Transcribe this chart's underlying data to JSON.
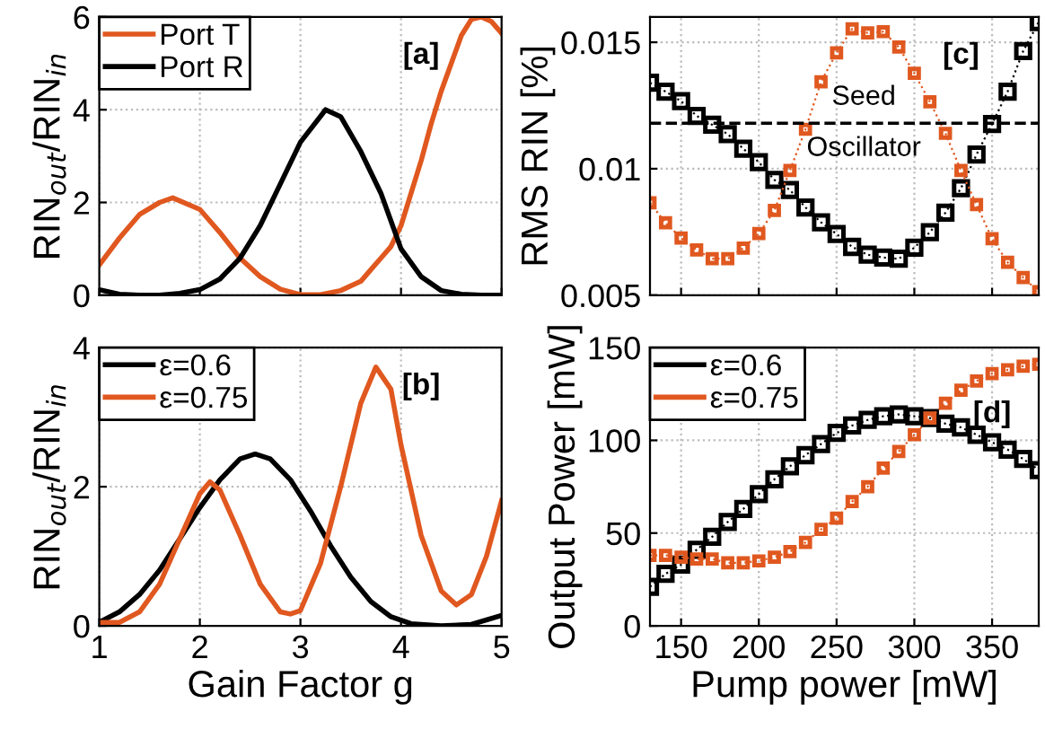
{
  "chart_data": [
    {
      "type": "line",
      "ylabel": "RIN$_{out}$/RIN$_{in}$",
      "xlim": [
        1,
        5
      ],
      "ylim": [
        0,
        6
      ],
      "xticks": [
        1,
        2,
        3,
        4,
        5
      ],
      "yticks": [
        0,
        2,
        4,
        6
      ],
      "tick_labels": "y",
      "grid": true,
      "legend": "top left",
      "marker": "none",
      "annotations": [
        "[a]"
      ],
      "series": [
        {
          "name": "Port T",
          "color": "#e0581f",
          "x": [
            1.0,
            1.2,
            1.4,
            1.6,
            1.73,
            2.0,
            2.2,
            2.4,
            2.6,
            2.8,
            3.0,
            3.2,
            3.4,
            3.6,
            3.7,
            3.8,
            3.9,
            4.0,
            4.1,
            4.2,
            4.3,
            4.4,
            4.5,
            4.6,
            4.7,
            4.8,
            4.9,
            5.0
          ],
          "values": [
            0.65,
            1.23,
            1.74,
            2.0,
            2.1,
            1.85,
            1.35,
            0.8,
            0.4,
            0.13,
            0.01,
            0.01,
            0.1,
            0.3,
            0.55,
            0.8,
            1.05,
            1.5,
            2.2,
            2.9,
            3.7,
            4.4,
            5.0,
            5.6,
            5.95,
            6.0,
            5.9,
            5.65
          ]
        },
        {
          "name": "Port R",
          "color": "#000000",
          "x": [
            1.0,
            1.2,
            1.4,
            1.6,
            1.8,
            2.0,
            2.2,
            2.4,
            2.6,
            2.8,
            3.0,
            3.25,
            3.4,
            3.6,
            3.8,
            3.95,
            4.0,
            4.2,
            4.4,
            4.6,
            4.8,
            5.0
          ],
          "values": [
            0.12,
            0.02,
            0,
            0,
            0.04,
            0.12,
            0.35,
            0.8,
            1.5,
            2.4,
            3.3,
            4.0,
            3.85,
            3.1,
            2.2,
            1.3,
            1.0,
            0.4,
            0.1,
            0.02,
            0,
            0
          ]
        }
      ]
    },
    {
      "type": "line",
      "xlabel": "Gain Factor g",
      "ylabel": "RIN$_{out}$/RIN$_{in}$",
      "xlim": [
        1,
        5
      ],
      "ylim": [
        0,
        4
      ],
      "xticks": [
        1,
        2,
        3,
        4,
        5
      ],
      "yticks": [
        0,
        2,
        4
      ],
      "grid": true,
      "legend": "top left",
      "marker": "none",
      "annotations": [
        "[b]"
      ],
      "series": [
        {
          "name": "ε=0.6",
          "color": "#000000",
          "x": [
            1.0,
            1.2,
            1.4,
            1.6,
            1.8,
            2.0,
            2.2,
            2.4,
            2.55,
            2.7,
            2.9,
            3.1,
            3.3,
            3.5,
            3.7,
            3.9,
            4.1,
            4.4,
            4.7,
            5.0
          ],
          "values": [
            0.05,
            0.2,
            0.45,
            0.8,
            1.25,
            1.7,
            2.1,
            2.4,
            2.47,
            2.4,
            2.1,
            1.65,
            1.15,
            0.7,
            0.35,
            0.13,
            0.03,
            0,
            0.02,
            0.15
          ]
        },
        {
          "name": "ε=0.75",
          "color": "#e0581f",
          "x": [
            1.0,
            1.2,
            1.4,
            1.6,
            1.8,
            2.0,
            2.1,
            2.2,
            2.4,
            2.6,
            2.8,
            2.9,
            3.0,
            3.2,
            3.4,
            3.6,
            3.75,
            3.9,
            4.0,
            4.2,
            4.4,
            4.55,
            4.7,
            4.85,
            5.0
          ],
          "values": [
            0.05,
            0.05,
            0.2,
            0.6,
            1.25,
            1.9,
            2.07,
            1.95,
            1.3,
            0.6,
            0.2,
            0.17,
            0.22,
            0.9,
            2.0,
            3.2,
            3.72,
            3.4,
            2.6,
            1.3,
            0.5,
            0.3,
            0.45,
            1.0,
            1.8
          ]
        }
      ]
    },
    {
      "type": "line",
      "ylabel": "RMS RIN [%]",
      "xlim": [
        130,
        380
      ],
      "ylim": [
        0.005,
        0.016
      ],
      "xticks": [
        150,
        200,
        250,
        300,
        350
      ],
      "yticks": [
        0.005,
        0.01,
        0.015
      ],
      "tick_labels": "y",
      "grid": true,
      "marker": "square",
      "line_style": "dotted",
      "annotations": [
        "[c]"
      ],
      "ref_lines": [
        {
          "axis": "y",
          "value": 0.0118,
          "label": "Seed Oscillator",
          "color": "#000000",
          "line_style": "dashed"
        }
      ],
      "x": [
        130,
        140,
        150,
        160,
        170,
        180,
        190,
        200,
        210,
        220,
        230,
        240,
        250,
        260,
        270,
        280,
        290,
        300,
        310,
        320,
        330,
        340,
        350,
        360,
        370,
        380
      ],
      "series": [
        {
          "color": "#000000",
          "values": [
            0.0134,
            0.01305,
            0.01267,
            0.01209,
            0.01174,
            0.01137,
            0.01079,
            0.01026,
            0.00956,
            0.00916,
            0.00847,
            0.00788,
            0.00742,
            0.00691,
            0.0066,
            0.00649,
            0.00644,
            0.00688,
            0.00749,
            0.00826,
            0.00923,
            0.01056,
            0.01177,
            0.01305,
            0.01465,
            0.0158
          ]
        },
        {
          "color": "#e0581f",
          "values": [
            0.00865,
            0.00786,
            0.00726,
            0.00679,
            0.00644,
            0.00644,
            0.00686,
            0.00744,
            0.00835,
            0.00993,
            0.01156,
            0.01344,
            0.01458,
            0.01553,
            0.01537,
            0.01542,
            0.01481,
            0.01377,
            0.01265,
            0.0114,
            0.00993,
            0.00858,
            0.00723,
            0.0063,
            0.0057,
            0.00514
          ]
        }
      ]
    },
    {
      "type": "line",
      "xlabel": "Pump power [mW]",
      "ylabel": "Output Power [mW]",
      "xlim": [
        130,
        380
      ],
      "ylim": [
        0,
        150
      ],
      "xticks": [
        150,
        200,
        250,
        300,
        350
      ],
      "yticks": [
        0,
        50,
        100,
        150
      ],
      "grid": true,
      "legend": "top left",
      "marker": "square",
      "line_style": "dotted",
      "annotations": [
        "[d]"
      ],
      "x": [
        130,
        140,
        150,
        160,
        170,
        180,
        190,
        200,
        210,
        220,
        230,
        240,
        250,
        260,
        270,
        280,
        290,
        300,
        310,
        320,
        330,
        340,
        350,
        360,
        370,
        380
      ],
      "series": [
        {
          "name": "ε=0.6",
          "color": "#000000",
          "values": [
            21,
            28,
            33,
            41,
            48,
            56,
            63,
            71,
            79,
            86,
            92,
            98,
            104,
            108,
            111,
            113,
            114,
            113,
            112,
            109,
            107,
            103,
            99,
            95,
            90,
            84
          ]
        },
        {
          "name": "ε=0.75",
          "color": "#e0581f",
          "values": [
            38,
            38,
            37,
            36,
            36,
            34,
            34,
            35,
            37,
            40,
            45,
            52,
            58,
            67,
            75,
            85,
            94,
            103,
            112,
            120,
            127,
            132,
            136,
            138,
            140,
            141
          ]
        }
      ]
    }
  ]
}
